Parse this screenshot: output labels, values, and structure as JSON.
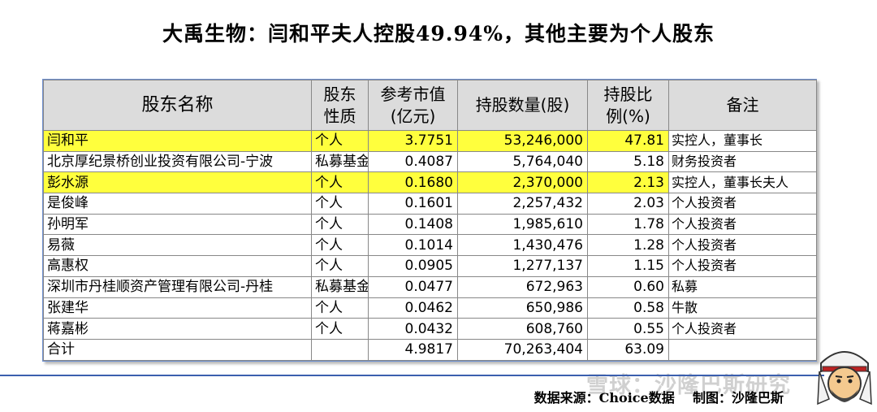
{
  "title": "大禹生物：闫和平夫人控股49.94%，其他主要为个人股东",
  "table": {
    "headers": [
      "股东名称",
      "股东\n性质",
      "参考市值\n(亿元)",
      "持股数量(股)",
      "持股比\n例(%)",
      "备注"
    ],
    "rows": [
      {
        "name": "闫和平",
        "type": "个人",
        "value": "3.7751",
        "shares": "53,246,000",
        "ratio": "47.81",
        "note": "实控人，董事长",
        "highlight": true
      },
      {
        "name": "北京厚纪景桥创业投资有限公司-宁波",
        "type": "私募基金",
        "value": "0.4087",
        "shares": "5,764,040",
        "ratio": "5.18",
        "note": "财务投资者",
        "highlight": false
      },
      {
        "name": "彭水源",
        "type": "个人",
        "value": "0.1680",
        "shares": "2,370,000",
        "ratio": "2.13",
        "note": "实控人，董事长夫人",
        "highlight": true
      },
      {
        "name": "是俊峰",
        "type": "个人",
        "value": "0.1601",
        "shares": "2,257,432",
        "ratio": "2.03",
        "note": "个人投资者",
        "highlight": false
      },
      {
        "name": "孙明军",
        "type": "个人",
        "value": "0.1408",
        "shares": "1,985,610",
        "ratio": "1.78",
        "note": "个人投资者",
        "highlight": false
      },
      {
        "name": "易薇",
        "type": "个人",
        "value": "0.1014",
        "shares": "1,430,476",
        "ratio": "1.28",
        "note": "个人投资者",
        "highlight": false
      },
      {
        "name": "高惠权",
        "type": "个人",
        "value": "0.0905",
        "shares": "1,277,137",
        "ratio": "1.15",
        "note": "个人投资者",
        "highlight": false
      },
      {
        "name": "深圳市丹桂顺资产管理有限公司-丹桂",
        "type": "私募基金",
        "value": "0.0477",
        "shares": "672,963",
        "ratio": "0.60",
        "note": "私募",
        "highlight": false
      },
      {
        "name": "张建华",
        "type": "个人",
        "value": "0.0462",
        "shares": "650,986",
        "ratio": "0.58",
        "note": "牛散",
        "highlight": false
      },
      {
        "name": "蒋嘉彬",
        "type": "个人",
        "value": "0.0432",
        "shares": "608,760",
        "ratio": "0.55",
        "note": "个人投资者",
        "highlight": false
      },
      {
        "name": "合计",
        "type": "",
        "value": "4.9817",
        "shares": "70,263,404",
        "ratio": "63.09",
        "note": "",
        "highlight": false
      }
    ]
  },
  "footer": "数据来源：Choice数据    制图：沙隆巴斯",
  "watermark": "雪球：沙隆巴斯研究",
  "colors": {
    "highlight": "#ffff3d",
    "header_bg": "#dcdcdc",
    "footer_line": "#3b5fae"
  }
}
